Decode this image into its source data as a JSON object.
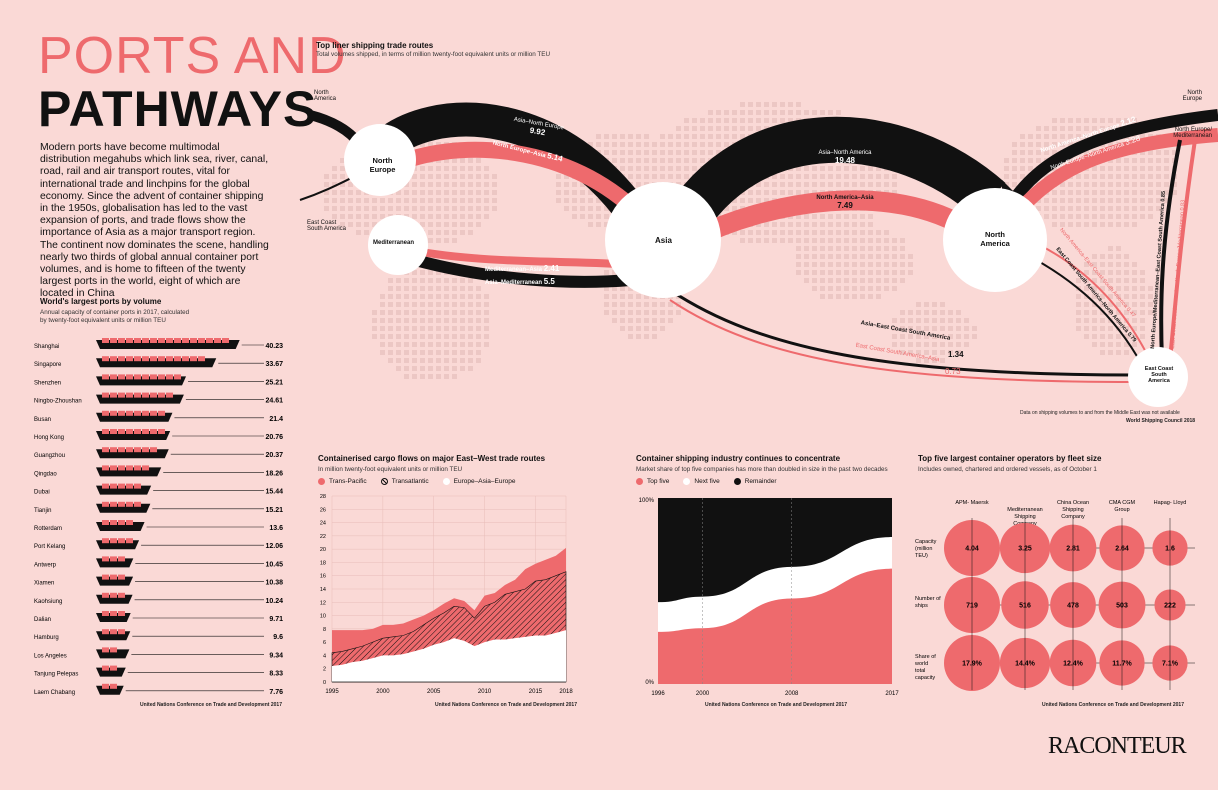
{
  "header": {
    "title_line1": "PORTS AND",
    "title_line2": "PATHWAYS",
    "intro": "Modern ports have become multimodal distribution megahubs which link sea, river, canal, road, rail and air transport routes, vital for international trade and linchpins for the global economy. Since the advent of container shipping in the 1950s, globalisation has led to the vast expansion of ports, and trade flows show the importance of Asia as a major transport region. The continent now dominates the scene, handling nearly two thirds of global annual container port volumes, and is home to fifteen of the twenty largest ports in the world, eight of which are located in China"
  },
  "colors": {
    "background": "#fad9d6",
    "accent": "#ee6a6d",
    "dark": "#111111",
    "white": "#ffffff"
  },
  "routes": {
    "title": "Top liner shipping trade routes",
    "subtitle": "Total volumes shipped, in terms of million twenty-foot equivalent units or million TEU",
    "nodes": {
      "north_europe": "North Europe",
      "mediterranean": "Mediterranean",
      "asia": "Asia",
      "north_america": "North America",
      "ecsa": "East Coast South America"
    },
    "edge_labels": {
      "na_left": "North America",
      "ecsa_left": "East Coast South America",
      "ne_right": "North Europe",
      "ne_med_right": "North Europe/ Mediterranean"
    },
    "flows": [
      {
        "name": "Asia–North Europe",
        "value": "9.92"
      },
      {
        "name": "North Europe–Asia",
        "value": "5.14"
      },
      {
        "name": "Asia–North America",
        "value": "19.48"
      },
      {
        "name": "North America–Asia",
        "value": "7.49"
      },
      {
        "name": "Mediterranean–Asia",
        "value": "2.41"
      },
      {
        "name": "Asia–Mediterranean",
        "value": "5.5"
      },
      {
        "name": "Asia–East Coast South America",
        "value": "1.34"
      },
      {
        "name": "East Coast South America–Asia",
        "value": "0.73"
      },
      {
        "name": "North America–North Europe",
        "value": "2.12"
      },
      {
        "name": "North Europe–North America",
        "value": "3.28"
      },
      {
        "name": "North America–East Coast South America",
        "value": "0.47"
      },
      {
        "name": "East Coast South America–North America",
        "value": "0.79"
      },
      {
        "name": "North Europe/Mediterranean–East Coast South America",
        "value": "0.85"
      },
      {
        "name": "East Coast South America–North Europe/Mediterranean",
        "value": "0.83"
      }
    ],
    "note": "Data on shipping volumes to and from the Middle East was not available",
    "source": "World Shipping Council 2018"
  },
  "ports": {
    "title": "World's largest ports by volume",
    "subtitle": "Annual capacity of container ports in 2017, calculated by twenty-foot equivalent units or million TEU",
    "source": "United Nations Conference on Trade and Development 2017"
  },
  "cargo": {
    "title": "Containerised cargo flows on major East–West trade routes",
    "subtitle": "In million twenty-foot equivalent units or million TEU",
    "source": "United Nations Conference on Trade and Development 2017"
  },
  "concentrate": {
    "title": "Container shipping industry continues to concentrate",
    "subtitle": "Market share of top five companies has more than doubled in size in the past two decades",
    "source": "United Nations Conference on Trade and Development 2017"
  },
  "operators": {
    "title": "Top five largest container operators by fleet size",
    "subtitle": "Includes owned, chartered and ordered vessels, as of October 1",
    "source": "United Nations Conference on Trade and Development 2017"
  },
  "brand": "RACONTEUR",
  "chart_data": [
    {
      "type": "bar",
      "id": "ports",
      "categories": [
        "Shanghai",
        "Singapore",
        "Shenzhen",
        "Ningbo-Zhoushan",
        "Busan",
        "Hong Kong",
        "Guangzhou",
        "Qingdao",
        "Dubai",
        "Tianjin",
        "Rotterdam",
        "Port Kelang",
        "Antwerp",
        "Xiamen",
        "Kaohsiung",
        "Dalian",
        "Hamburg",
        "Los Angeles",
        "Tanjung Pelepas",
        "Laem Chabang"
      ],
      "values": [
        40.23,
        33.67,
        25.21,
        24.61,
        21.4,
        20.76,
        20.37,
        18.26,
        15.44,
        15.21,
        13.6,
        12.06,
        10.45,
        10.38,
        10.24,
        9.71,
        9.6,
        9.34,
        8.33,
        7.76
      ],
      "labels": [
        "40.23",
        "33.67",
        "25.21",
        "24.61",
        "21.4",
        "20.76",
        "20.37",
        "18.26",
        "15.44",
        "15.21",
        "13.6",
        "12.06",
        "10.45",
        "10.38",
        "10.24",
        "9.71",
        "9.6",
        "9.34",
        "8.33",
        "7.76"
      ]
    },
    {
      "type": "area",
      "id": "cargo",
      "x": [
        1995,
        1996,
        1997,
        1998,
        1999,
        2000,
        2001,
        2002,
        2003,
        2004,
        2005,
        2006,
        2007,
        2008,
        2009,
        2010,
        2011,
        2012,
        2013,
        2014,
        2015,
        2016,
        2017,
        2018
      ],
      "xticks": [
        "1995",
        "2000",
        "2005",
        "2010",
        "2015",
        "2018"
      ],
      "yticks": [
        "0",
        "2",
        "4",
        "6",
        "8",
        "10",
        "12",
        "14",
        "16",
        "18",
        "20",
        "22",
        "24",
        "26",
        "28"
      ],
      "ylim": [
        0,
        28
      ],
      "legend": [
        "Trans-Pacific",
        "Transatlantic",
        "Europe–Asia–Europe"
      ],
      "series": [
        {
          "name": "Europe–Asia–Europe",
          "values": [
            2.4,
            2.6,
            3.0,
            3.2,
            3.6,
            4.0,
            4.0,
            4.2,
            4.6,
            5.0,
            5.6,
            6.0,
            6.6,
            6.2,
            5.4,
            6.0,
            6.4,
            6.4,
            6.6,
            6.8,
            7.0,
            7.0,
            7.4,
            7.8
          ]
        },
        {
          "name": "Transatlantic",
          "values": [
            4.4,
            4.6,
            5.0,
            5.4,
            6.0,
            6.6,
            6.8,
            7.0,
            7.6,
            8.6,
            9.6,
            10.4,
            11.4,
            11.2,
            9.6,
            11.4,
            12.0,
            13.2,
            13.6,
            14.0,
            15.2,
            15.4,
            16.0,
            16.6
          ]
        },
        {
          "name": "Trans-Pacific",
          "values": [
            7.8,
            7.8,
            7.8,
            7.8,
            8.0,
            8.6,
            8.6,
            8.8,
            9.4,
            10.0,
            10.8,
            11.8,
            12.6,
            12.2,
            10.8,
            13.0,
            13.4,
            14.6,
            15.4,
            17.0,
            17.8,
            18.4,
            19.0,
            20.2
          ]
        }
      ]
    },
    {
      "type": "area",
      "id": "concentrate",
      "x": [
        "1996",
        "2000",
        "2008",
        "2017"
      ],
      "ylim": [
        0,
        100
      ],
      "yticks": [
        "0%",
        "100%"
      ],
      "legend": [
        "Top five",
        "Next five",
        "Remainder"
      ],
      "series": [
        {
          "name": "Top five",
          "values": [
            28,
            30,
            46,
            62
          ]
        },
        {
          "name": "Next five",
          "values": [
            16,
            17,
            17,
            17
          ]
        },
        {
          "name": "Remainder",
          "values": [
            56,
            53,
            37,
            21
          ]
        }
      ]
    },
    {
      "type": "table",
      "id": "operators",
      "columns": [
        "APM- Maersk",
        "Mediterranean Shipping Company",
        "China Ocean Shipping Company",
        "CMA CGM Group",
        "Hapag- Lloyd"
      ],
      "rows": [
        {
          "label": "Capacity (million TEU)",
          "values": [
            4.04,
            3.25,
            2.81,
            2.64,
            1.6
          ],
          "labels": [
            "4.04",
            "3.25",
            "2.81",
            "2.64",
            "1.6"
          ]
        },
        {
          "label": "Number of ships",
          "values": [
            719,
            516,
            478,
            503,
            222
          ],
          "labels": [
            "719",
            "516",
            "478",
            "503",
            "222"
          ]
        },
        {
          "label": "Share of world total capacity",
          "values": [
            17.9,
            14.4,
            12.4,
            11.7,
            7.1
          ],
          "labels": [
            "17.9%",
            "14.4%",
            "12.4%",
            "11.7%",
            "7.1%"
          ]
        }
      ]
    }
  ]
}
